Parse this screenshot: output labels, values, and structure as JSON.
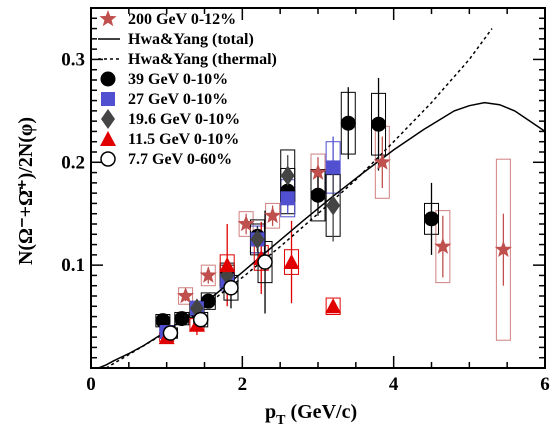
{
  "chart_data": {
    "type": "scatter",
    "xlabel_main": "p",
    "xlabel_sub": "T",
    "xlabel_unit": " (GeV/c)",
    "ylabel": "N(Ω⁻+Ω̄⁺)/2N(φ)",
    "xlim": [
      0,
      6
    ],
    "ylim": [
      0,
      0.35
    ],
    "x_ticks": [
      0,
      2,
      4,
      6
    ],
    "y_ticks": [
      0.1,
      0.2,
      0.3
    ],
    "grid": false,
    "legend_position": "top-left",
    "curves": [
      {
        "name": "Hwa&Yang (total)",
        "style": "solid",
        "x": [
          0.1,
          0.2,
          0.3,
          0.5,
          0.7,
          1.0,
          1.3,
          1.6,
          2.0,
          2.4,
          2.8,
          3.2,
          3.6,
          4.0,
          4.4,
          4.8,
          5.0,
          5.2,
          5.4,
          5.6,
          5.8,
          6.0
        ],
        "y": [
          0.0,
          0.003,
          0.007,
          0.014,
          0.022,
          0.036,
          0.052,
          0.069,
          0.093,
          0.118,
          0.143,
          0.167,
          0.19,
          0.212,
          0.232,
          0.25,
          0.255,
          0.258,
          0.256,
          0.25,
          0.24,
          0.23
        ]
      },
      {
        "name": "Hwa&Yang (thermal)",
        "style": "dotted",
        "x": [
          0.2,
          0.5,
          1.0,
          1.5,
          2.0,
          2.5,
          3.0,
          3.5,
          4.0,
          4.5,
          5.0,
          5.3
        ],
        "y": [
          0.0,
          0.013,
          0.035,
          0.06,
          0.088,
          0.118,
          0.15,
          0.183,
          0.22,
          0.258,
          0.3,
          0.33
        ]
      }
    ],
    "series": [
      {
        "name": "200  GeV 0-12%",
        "marker": "star",
        "color": "#c0504d",
        "x": [
          1.25,
          1.55,
          2.05,
          2.4,
          3.0,
          3.85,
          4.65,
          5.45
        ],
        "y": [
          0.07,
          0.09,
          0.14,
          0.148,
          0.19,
          0.2,
          0.118,
          0.115
        ],
        "yerr": [
          0.005,
          0.008,
          0.01,
          0.01,
          0.015,
          0.025,
          0.03,
          0.035
        ],
        "sys": [
          0.008,
          0.01,
          0.012,
          0.012,
          0.018,
          0.035,
          0.035,
          0.088
        ]
      },
      {
        "name": "39    GeV 0-10%",
        "marker": "circle",
        "color": "#000000",
        "x": [
          0.95,
          1.2,
          1.4,
          1.55,
          1.8,
          2.2,
          2.6,
          3.0,
          3.4,
          3.8,
          4.5
        ],
        "y": [
          0.046,
          0.048,
          0.055,
          0.065,
          0.09,
          0.128,
          0.172,
          0.168,
          0.238,
          0.237,
          0.145
        ],
        "yerr": [
          0.003,
          0.003,
          0.004,
          0.005,
          0.007,
          0.01,
          0.015,
          0.02,
          0.035,
          0.045,
          0.035
        ],
        "sys": [
          0.006,
          0.006,
          0.006,
          0.008,
          0.012,
          0.016,
          0.022,
          0.025,
          0.03,
          0.03,
          0.015
        ]
      },
      {
        "name": "27    GeV 0-10%",
        "marker": "square",
        "color": "#5050d0",
        "x": [
          1.0,
          1.4,
          1.8,
          2.2,
          2.6,
          3.2
        ],
        "y": [
          0.035,
          0.058,
          0.085,
          0.125,
          0.165,
          0.195
        ],
        "yerr": [
          0.003,
          0.005,
          0.008,
          0.01,
          0.015,
          0.03
        ],
        "sys": [
          0.005,
          0.007,
          0.01,
          0.013,
          0.018,
          0.025
        ]
      },
      {
        "name": "19.6 GeV 0-10%",
        "marker": "diamond",
        "color": "#444444",
        "x": [
          1.4,
          1.8,
          2.2,
          2.6,
          3.2
        ],
        "y": [
          0.058,
          0.09,
          0.125,
          0.187,
          0.158
        ],
        "yerr": [
          0.005,
          0.008,
          0.012,
          0.02,
          0.035
        ],
        "sys": [
          0.006,
          0.01,
          0.015,
          0.025,
          0.03
        ]
      },
      {
        "name": "11.5  GeV 0-10%",
        "marker": "triangle",
        "color": "#e00000",
        "x": [
          1.0,
          1.4,
          1.8,
          2.25,
          2.65,
          3.2
        ],
        "y": [
          0.03,
          0.042,
          0.1,
          0.107,
          0.103,
          0.06
        ],
        "yerr": [
          0.005,
          0.01,
          0.04,
          0.035,
          0.04,
          0.005
        ],
        "sys": [
          0.004,
          0.006,
          0.01,
          0.012,
          0.012,
          0.008
        ]
      },
      {
        "name": "7.7  GeV 0-60%",
        "marker": "open-circle",
        "color": "#000000",
        "x": [
          1.05,
          1.45,
          1.85,
          2.3
        ],
        "y": [
          0.034,
          0.047,
          0.078,
          0.103
        ],
        "yerr": [
          0.005,
          0.008,
          0.02,
          0.05
        ],
        "sys": [
          0.005,
          0.007,
          0.012,
          0.02
        ]
      }
    ]
  }
}
